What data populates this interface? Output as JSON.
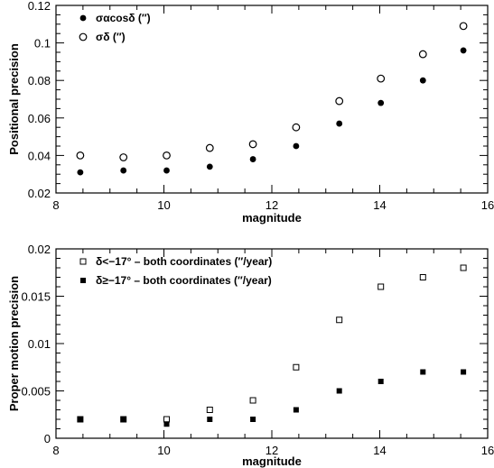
{
  "chart_data": [
    {
      "type": "scatter",
      "xlabel": "magnitude",
      "ylabel": "Positional precision",
      "xlim": [
        8,
        16
      ],
      "ylim": [
        0.02,
        0.12
      ],
      "xticks": [
        "8",
        "10",
        "12",
        "14",
        "16"
      ],
      "yticks": [
        "0.02",
        "0.04",
        "0.06",
        "0.08",
        "0.1",
        "0.12"
      ],
      "legend_position": "top-left",
      "series": [
        {
          "name": "σαcosδ (″)",
          "marker": "filled-circle",
          "x": [
            8.45,
            9.25,
            10.05,
            10.85,
            11.65,
            12.45,
            13.25,
            14.02,
            14.8,
            15.55
          ],
          "y": [
            0.031,
            0.032,
            0.032,
            0.034,
            0.038,
            0.045,
            0.057,
            0.068,
            0.08,
            0.096
          ]
        },
        {
          "name": "σδ (″)",
          "marker": "open-circle",
          "x": [
            8.45,
            9.25,
            10.05,
            10.85,
            11.65,
            12.45,
            13.25,
            14.02,
            14.8,
            15.55
          ],
          "y": [
            0.04,
            0.039,
            0.04,
            0.044,
            0.046,
            0.055,
            0.069,
            0.081,
            0.094,
            0.109
          ]
        }
      ]
    },
    {
      "type": "scatter",
      "xlabel": "magnitude",
      "ylabel": "Proper motion precision",
      "xlim": [
        8,
        16
      ],
      "ylim": [
        0,
        0.02
      ],
      "xticks": [
        "8",
        "10",
        "12",
        "14",
        "16"
      ],
      "yticks": [
        "0",
        "0.005",
        "0.01",
        "0.015",
        "0.02"
      ],
      "legend_position": "top-left",
      "series": [
        {
          "name": "δ<−17° – both coordinates (″/year)",
          "marker": "open-square",
          "x": [
            8.45,
            9.25,
            10.05,
            10.85,
            11.65,
            12.45,
            13.25,
            14.02,
            14.8,
            15.55
          ],
          "y": [
            0.002,
            0.002,
            0.002,
            0.003,
            0.004,
            0.0075,
            0.0125,
            0.016,
            0.017,
            0.018
          ]
        },
        {
          "name": "δ≥−17° – both coordinates (″/year)",
          "marker": "filled-square",
          "x": [
            8.45,
            9.25,
            10.05,
            10.85,
            11.65,
            12.45,
            13.25,
            14.02,
            14.8,
            15.55
          ],
          "y": [
            0.002,
            0.002,
            0.0015,
            0.002,
            0.002,
            0.003,
            0.005,
            0.006,
            0.007,
            0.007
          ]
        }
      ]
    }
  ]
}
